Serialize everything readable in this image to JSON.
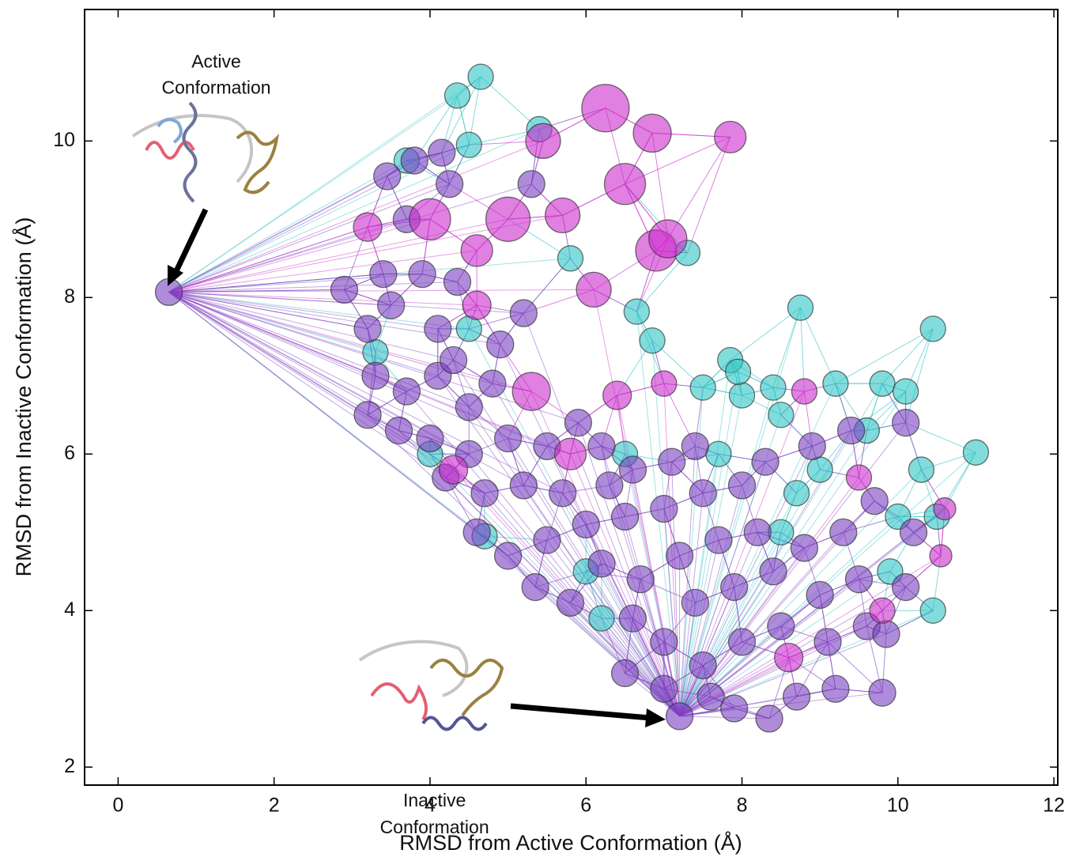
{
  "chart_data": {
    "type": "scatter",
    "xlabel": "RMSD from Active Conformation (Å)",
    "ylabel": "RMSD from Inactive Conformation (Å)",
    "xlim": [
      -0.43,
      12.05
    ],
    "ylim": [
      1.77,
      11.68
    ],
    "xticks": [
      0,
      2,
      4,
      6,
      8,
      10,
      12
    ],
    "yticks": [
      2,
      4,
      6,
      8,
      10
    ],
    "annotations": [
      {
        "lines": [
          "Active",
          "Conformation"
        ],
        "xy": [
          0.65,
          8.07
        ]
      },
      {
        "lines": [
          "Inactive",
          "Conformation"
        ],
        "xy": [
          7.2,
          2.65
        ]
      }
    ],
    "series": [
      {
        "color": "#2ec4c4",
        "marker_size": 16,
        "x": [
          4.65,
          4.35,
          5.4,
          7.3,
          8.75,
          10.45,
          11,
          6.85,
          6.65,
          7.85,
          7.5,
          8.4,
          9.2,
          9.8,
          10.1,
          8.0,
          8.5,
          9.6,
          10.3,
          10.5,
          10.45,
          10.0,
          9.0,
          8.7,
          7.7,
          6.5,
          5.8,
          4.5,
          3.7,
          4.5,
          3.3,
          4.0,
          6.2,
          6.0,
          8.5,
          9.9,
          4.7,
          7.95
        ],
        "values": [
          10.82,
          10.58,
          10.15,
          8.57,
          7.87,
          7.6,
          6.02,
          7.45,
          7.82,
          7.2,
          6.85,
          6.85,
          6.9,
          6.9,
          6.8,
          6.75,
          6.5,
          6.3,
          5.8,
          5.2,
          4.0,
          5.2,
          5.8,
          5.5,
          6.0,
          6.0,
          8.5,
          7.6,
          9.75,
          9.95,
          7.3,
          6.0,
          3.9,
          4.5,
          5.0,
          4.5,
          4.95,
          7.05
        ]
      },
      {
        "color": "#7a3fc0",
        "marker_size": 17,
        "x": [
          0.65,
          7.2,
          3.45,
          3.8,
          4.15,
          4.25,
          5.3,
          3.7,
          3.4,
          2.9,
          3.2,
          3.5,
          3.9,
          4.1,
          4.35,
          4.9,
          5.2,
          3.3,
          3.7,
          4.1,
          4.5,
          4.8,
          3.2,
          3.6,
          4.0,
          4.5,
          5.0,
          5.5,
          4.2,
          4.7,
          5.2,
          5.7,
          6.2,
          6.6,
          7.1,
          4.6,
          5.0,
          5.5,
          6.0,
          6.5,
          7.0,
          7.5,
          8.0,
          5.35,
          5.8,
          6.2,
          6.7,
          7.2,
          7.7,
          8.2,
          8.8,
          9.3,
          9.7,
          10.2,
          6.6,
          7.0,
          7.4,
          7.9,
          8.4,
          9.0,
          9.5,
          10.1,
          6.5,
          7.0,
          7.5,
          8.0,
          8.5,
          9.1,
          9.6,
          9.85,
          7.6,
          7.9,
          8.35,
          8.7,
          9.2,
          9.8,
          4.3,
          5.9,
          6.3,
          7.4,
          8.9,
          9.4,
          10.1,
          8.3
        ],
        "values": [
          8.07,
          2.65,
          9.55,
          9.75,
          9.85,
          9.45,
          9.45,
          9.0,
          8.3,
          8.1,
          7.6,
          7.9,
          8.3,
          7.6,
          8.2,
          7.4,
          7.8,
          7.0,
          6.8,
          7.0,
          6.6,
          6.9,
          6.5,
          6.3,
          6.2,
          6.0,
          6.2,
          6.1,
          5.7,
          5.5,
          5.6,
          5.5,
          6.1,
          5.8,
          5.9,
          5.0,
          4.7,
          4.9,
          5.1,
          5.2,
          5.3,
          5.5,
          5.6,
          4.3,
          4.1,
          4.6,
          4.4,
          4.7,
          4.9,
          5.0,
          4.8,
          5.0,
          5.4,
          5.0,
          3.9,
          3.6,
          4.1,
          4.3,
          4.5,
          4.2,
          4.4,
          4.3,
          3.2,
          3.0,
          3.3,
          3.6,
          3.8,
          3.6,
          3.8,
          3.7,
          2.9,
          2.75,
          2.62,
          2.9,
          3.0,
          2.95,
          7.2,
          6.4,
          5.6,
          6.1,
          6.1,
          6.3,
          6.4,
          5.9
        ]
      },
      {
        "color": "#cc2ccc",
        "sizes": [
          30,
          24,
          20,
          22,
          26,
          26,
          28,
          22,
          26,
          24,
          18,
          20,
          22,
          24,
          18,
          16,
          14,
          14,
          16,
          16,
          18,
          20,
          18,
          16,
          18
        ],
        "x": [
          6.25,
          6.85,
          7.85,
          5.45,
          6.5,
          4.0,
          5.0,
          5.7,
          6.9,
          7.05,
          3.2,
          4.6,
          6.1,
          5.3,
          4.6,
          8.8,
          10.55,
          10.6,
          9.5,
          7.0,
          6.4,
          5.8,
          4.3,
          9.8,
          8.6
        ],
        "values": [
          10.42,
          10.1,
          10.05,
          10.0,
          9.45,
          9.0,
          9.0,
          9.05,
          8.6,
          8.75,
          8.9,
          8.6,
          8.1,
          6.8,
          7.9,
          6.8,
          4.7,
          5.3,
          5.7,
          6.9,
          6.75,
          6.0,
          5.8,
          4.0,
          3.4
        ]
      }
    ]
  }
}
